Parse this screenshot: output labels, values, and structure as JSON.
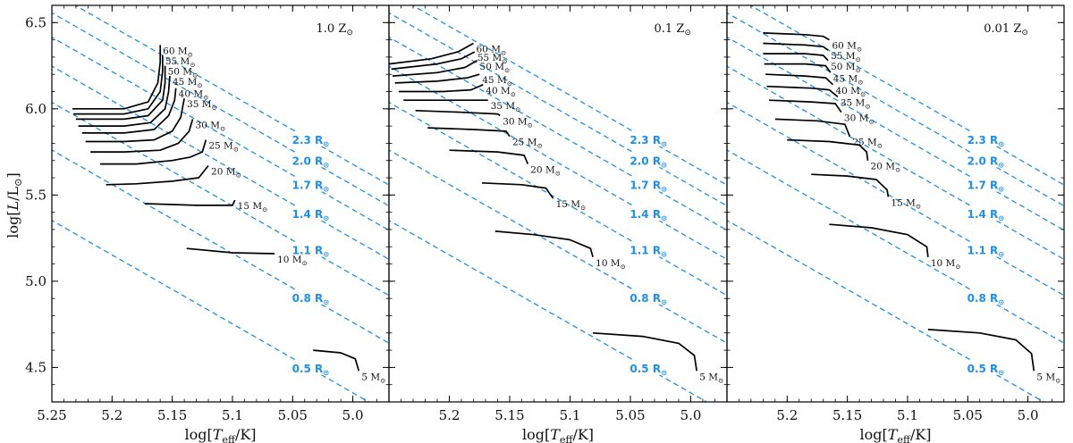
{
  "colors": {
    "radius_line": "#1f8fe8",
    "track": "#000000",
    "frame": "#000000"
  },
  "chart_data": {
    "type": "line",
    "title": "",
    "xlabel": "log[T_eff/K]",
    "ylabel": "log[L/L⊙]",
    "xlim": [
      5.25,
      4.97
    ],
    "ylim": [
      4.3,
      6.6
    ],
    "x_ticks": [
      5.25,
      5.2,
      5.15,
      5.1,
      5.05,
      5.0
    ],
    "x_tick_labels": [
      "5.25",
      "5.2",
      "5.15",
      "5.1",
      "5.05",
      "5.0"
    ],
    "y_ticks": [
      4.5,
      5.0,
      5.5,
      6.0,
      6.5
    ],
    "y_tick_labels": [
      "4.5",
      "5.0",
      "5.5",
      "6.0",
      "6.5"
    ],
    "radius_lines": [
      {
        "label": "0.5 R",
        "value": 0.5
      },
      {
        "label": "0.8 R",
        "value": 0.8
      },
      {
        "label": "1.1 R",
        "value": 1.1
      },
      {
        "label": "1.4 R",
        "value": 1.4
      },
      {
        "label": "1.7 R",
        "value": 1.7
      },
      {
        "label": "2.0 R",
        "value": 2.0
      },
      {
        "label": "2.3 R",
        "value": 2.3
      }
    ],
    "radius_label_x": 5.035,
    "panels": [
      {
        "metallicity": "1.0 Z",
        "tracks": [
          {
            "mass": "5 M",
            "points": [
              [
                5.033,
                4.6
              ],
              [
                5.01,
                4.585
              ],
              [
                4.998,
                4.55
              ],
              [
                4.995,
                4.48
              ]
            ]
          },
          {
            "mass": "10 M",
            "points": [
              [
                5.138,
                5.19
              ],
              [
                5.1,
                5.165
              ],
              [
                5.065,
                5.16
              ]
            ]
          },
          {
            "mass": "15 M",
            "points": [
              [
                5.173,
                5.45
              ],
              [
                5.13,
                5.44
              ],
              [
                5.1,
                5.44
              ],
              [
                5.098,
                5.47
              ]
            ]
          },
          {
            "mass": "20 M",
            "points": [
              [
                5.205,
                5.56
              ],
              [
                5.18,
                5.565
              ],
              [
                5.15,
                5.58
              ],
              [
                5.128,
                5.6
              ],
              [
                5.12,
                5.67
              ]
            ]
          },
          {
            "mass": "25 M",
            "points": [
              [
                5.21,
                5.68
              ],
              [
                5.18,
                5.68
              ],
              [
                5.15,
                5.7
              ],
              [
                5.135,
                5.72
              ],
              [
                5.125,
                5.75
              ],
              [
                5.122,
                5.82
              ]
            ]
          },
          {
            "mass": "30 M",
            "points": [
              [
                5.218,
                5.75
              ],
              [
                5.19,
                5.75
              ],
              [
                5.16,
                5.76
              ],
              [
                5.145,
                5.8
              ],
              [
                5.136,
                5.87
              ],
              [
                5.133,
                5.94
              ]
            ]
          },
          {
            "mass": "35 M",
            "points": [
              [
                5.222,
                5.81
              ],
              [
                5.19,
                5.81
              ],
              [
                5.165,
                5.82
              ],
              [
                5.15,
                5.87
              ],
              [
                5.143,
                5.95
              ],
              [
                5.14,
                6.06
              ]
            ]
          },
          {
            "mass": "40 M",
            "points": [
              [
                5.225,
                5.86
              ],
              [
                5.19,
                5.86
              ],
              [
                5.165,
                5.88
              ],
              [
                5.153,
                5.96
              ],
              [
                5.148,
                6.05
              ],
              [
                5.147,
                6.12
              ]
            ]
          },
          {
            "mass": "45 M",
            "points": [
              [
                5.228,
                5.9
              ],
              [
                5.19,
                5.9
              ],
              [
                5.168,
                5.92
              ],
              [
                5.156,
                6.0
              ],
              [
                5.153,
                6.1
              ],
              [
                5.152,
                6.19
              ]
            ]
          },
          {
            "mass": "50 M",
            "points": [
              [
                5.23,
                5.94
              ],
              [
                5.19,
                5.94
              ],
              [
                5.17,
                5.96
              ],
              [
                5.158,
                6.05
              ],
              [
                5.156,
                6.15
              ],
              [
                5.156,
                6.25
              ]
            ]
          },
          {
            "mass": "55 M",
            "points": [
              [
                5.232,
                5.97
              ],
              [
                5.19,
                5.97
              ],
              [
                5.17,
                6.0
              ],
              [
                5.16,
                6.1
              ],
              [
                5.158,
                6.22
              ],
              [
                5.158,
                6.31
              ]
            ]
          },
          {
            "mass": "60 M",
            "points": [
              [
                5.233,
                6.0
              ],
              [
                5.19,
                6.0
              ],
              [
                5.17,
                6.04
              ],
              [
                5.162,
                6.15
              ],
              [
                5.16,
                6.27
              ],
              [
                5.16,
                6.37
              ]
            ]
          }
        ]
      },
      {
        "metallicity": "0.1 Z",
        "tracks": [
          {
            "mass": "5 M",
            "points": [
              [
                5.081,
                4.7
              ],
              [
                5.04,
                4.68
              ],
              [
                5.01,
                4.64
              ],
              [
                4.997,
                4.57
              ],
              [
                4.995,
                4.48
              ]
            ]
          },
          {
            "mass": "10 M",
            "points": [
              [
                5.162,
                5.29
              ],
              [
                5.13,
                5.27
              ],
              [
                5.1,
                5.24
              ],
              [
                5.083,
                5.19
              ],
              [
                5.081,
                5.14
              ]
            ]
          },
          {
            "mass": "15 M",
            "points": [
              [
                5.173,
                5.57
              ],
              [
                5.14,
                5.56
              ],
              [
                5.12,
                5.54
              ],
              [
                5.114,
                5.48
              ]
            ]
          },
          {
            "mass": "20 M",
            "points": [
              [
                5.2,
                5.76
              ],
              [
                5.16,
                5.75
              ],
              [
                5.138,
                5.73
              ],
              [
                5.135,
                5.68
              ]
            ]
          },
          {
            "mass": "25 M",
            "points": [
              [
                5.218,
                5.89
              ],
              [
                5.18,
                5.88
              ],
              [
                5.153,
                5.87
              ],
              [
                5.15,
                5.84
              ]
            ]
          },
          {
            "mass": "30 M",
            "points": [
              [
                5.228,
                5.99
              ],
              [
                5.19,
                5.98
              ],
              [
                5.16,
                5.97
              ],
              [
                5.158,
                5.96
              ]
            ]
          },
          {
            "mass": "35 M",
            "points": [
              [
                5.238,
                6.05
              ],
              [
                5.2,
                6.05
              ],
              [
                5.18,
                6.05
              ],
              [
                5.168,
                6.05
              ]
            ]
          },
          {
            "mass": "40 M",
            "points": [
              [
                5.242,
                6.1
              ],
              [
                5.205,
                6.1
              ],
              [
                5.182,
                6.11
              ],
              [
                5.172,
                6.14
              ]
            ]
          },
          {
            "mass": "45 M",
            "points": [
              [
                5.245,
                6.15
              ],
              [
                5.21,
                6.16
              ],
              [
                5.185,
                6.18
              ],
              [
                5.175,
                6.2
              ]
            ]
          },
          {
            "mass": "50 M",
            "points": [
              [
                5.247,
                6.19
              ],
              [
                5.21,
                6.21
              ],
              [
                5.187,
                6.24
              ],
              [
                5.177,
                6.28
              ]
            ]
          },
          {
            "mass": "55 M",
            "points": [
              [
                5.248,
                6.23
              ],
              [
                5.21,
                6.26
              ],
              [
                5.19,
                6.29
              ],
              [
                5.179,
                6.33
              ]
            ]
          },
          {
            "mass": "60 M",
            "points": [
              [
                5.25,
                6.26
              ],
              [
                5.215,
                6.29
              ],
              [
                5.193,
                6.33
              ],
              [
                5.18,
                6.38
              ]
            ]
          }
        ]
      },
      {
        "metallicity": "0.01 Z",
        "tracks": [
          {
            "mass": "5 M",
            "points": [
              [
                5.083,
                4.72
              ],
              [
                5.04,
                4.7
              ],
              [
                5.01,
                4.66
              ],
              [
                4.997,
                4.58
              ],
              [
                4.995,
                4.48
              ]
            ]
          },
          {
            "mass": "10 M",
            "points": [
              [
                5.165,
                5.33
              ],
              [
                5.13,
                5.31
              ],
              [
                5.1,
                5.27
              ],
              [
                5.084,
                5.2
              ],
              [
                5.083,
                5.14
              ]
            ]
          },
          {
            "mass": "15 M",
            "points": [
              [
                5.18,
                5.62
              ],
              [
                5.15,
                5.61
              ],
              [
                5.126,
                5.59
              ],
              [
                5.117,
                5.53
              ],
              [
                5.116,
                5.49
              ]
            ]
          },
          {
            "mass": "20 M",
            "points": [
              [
                5.2,
                5.82
              ],
              [
                5.165,
                5.81
              ],
              [
                5.14,
                5.79
              ],
              [
                5.134,
                5.75
              ],
              [
                5.133,
                5.7
              ]
            ]
          },
          {
            "mass": "25 M",
            "points": [
              [
                5.21,
                5.94
              ],
              [
                5.175,
                5.93
              ],
              [
                5.152,
                5.91
              ],
              [
                5.148,
                5.84
              ]
            ]
          },
          {
            "mass": "30 M",
            "points": [
              [
                5.215,
                6.05
              ],
              [
                5.18,
                6.04
              ],
              [
                5.16,
                6.03
              ],
              [
                5.155,
                5.98
              ]
            ]
          },
          {
            "mass": "35 M",
            "points": [
              [
                5.217,
                6.13
              ],
              [
                5.18,
                6.12
              ],
              [
                5.165,
                6.11
              ],
              [
                5.158,
                6.07
              ]
            ]
          },
          {
            "mass": "40 M",
            "points": [
              [
                5.218,
                6.2
              ],
              [
                5.185,
                6.19
              ],
              [
                5.168,
                6.18
              ],
              [
                5.162,
                6.14
              ]
            ]
          },
          {
            "mass": "45 M",
            "points": [
              [
                5.219,
                6.26
              ],
              [
                5.185,
                6.26
              ],
              [
                5.168,
                6.25
              ],
              [
                5.164,
                6.21
              ]
            ]
          },
          {
            "mass": "50 M",
            "points": [
              [
                5.22,
                6.32
              ],
              [
                5.185,
                6.32
              ],
              [
                5.17,
                6.31
              ],
              [
                5.166,
                6.28
              ]
            ]
          },
          {
            "mass": "55 M",
            "points": [
              [
                5.22,
                6.38
              ],
              [
                5.185,
                6.37
              ],
              [
                5.17,
                6.36
              ],
              [
                5.166,
                6.34
              ]
            ]
          },
          {
            "mass": "60 M",
            "points": [
              [
                5.22,
                6.44
              ],
              [
                5.185,
                6.43
              ],
              [
                5.17,
                6.42
              ],
              [
                5.165,
                6.4
              ]
            ]
          }
        ]
      }
    ]
  }
}
